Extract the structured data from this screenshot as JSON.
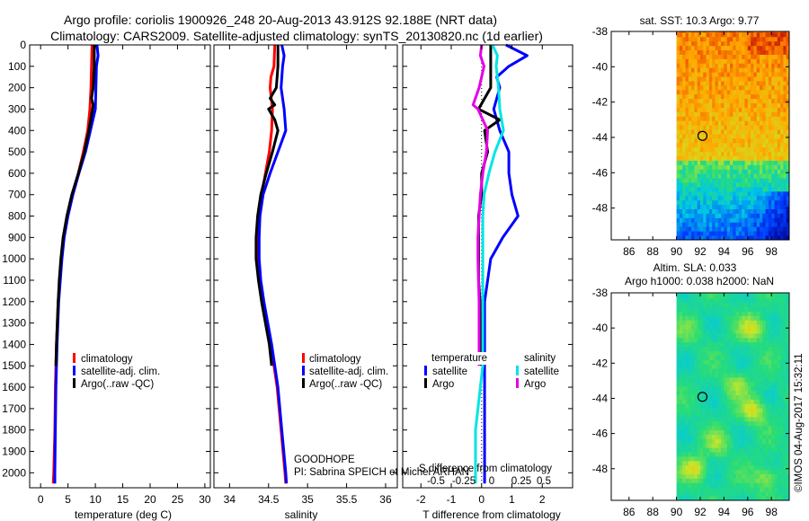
{
  "header": {
    "title_line1": "Argo profile: coriolis 1900926_248 20-Aug-2013 43.912S 92.188E (NRT data)",
    "title_line2": "Climatology: CARS2009. Satellite-adjusted climatology: synTS_20130820.nc (1d earlier)"
  },
  "colors": {
    "climatology": "#ff0000",
    "satellite": "#0000ff",
    "argo": "#000000",
    "sat_salinity": "#00e5e5",
    "argo_salinity": "#e600e6"
  },
  "chart_data": [
    {
      "type": "line",
      "id": "temperature",
      "xlabel": "temperature (deg C)",
      "ylabel": "",
      "xlim": [
        -2,
        31
      ],
      "ylim": [
        2070,
        0
      ],
      "xticks": [
        "0",
        "5",
        "10",
        "15",
        "20",
        "25",
        "30"
      ],
      "xtick_values": [
        0,
        5,
        10,
        15,
        20,
        25,
        30
      ],
      "yticks": [
        "0",
        "100",
        "200",
        "300",
        "400",
        "500",
        "600",
        "700",
        "800",
        "900",
        "1000",
        "1100",
        "1200",
        "1300",
        "1400",
        "1500",
        "1600",
        "1700",
        "1800",
        "1900",
        "2000"
      ],
      "ytick_values": [
        0,
        100,
        200,
        300,
        400,
        500,
        600,
        700,
        800,
        900,
        1000,
        1100,
        1200,
        1300,
        1400,
        1500,
        1600,
        1700,
        1800,
        1900,
        2000
      ],
      "legend": [
        "climatology",
        "satellite-adj. clim.",
        "Argo(..raw -QC)"
      ],
      "series": [
        {
          "name": "climatology",
          "depth": [
            0,
            100,
            200,
            300,
            400,
            500,
            600,
            700,
            800,
            900,
            1000,
            1100,
            1200,
            1400,
            1600,
            1800,
            2000,
            2050
          ],
          "values": [
            9.4,
            9.3,
            9.2,
            9.0,
            8.6,
            7.8,
            6.9,
            5.8,
            4.9,
            4.2,
            3.8,
            3.5,
            3.2,
            2.9,
            2.7,
            2.6,
            2.4,
            2.3
          ]
        },
        {
          "name": "satellite-adj. clim.",
          "depth": [
            0,
            50,
            100,
            200,
            300,
            400,
            500,
            600,
            700,
            800,
            900,
            1000,
            1100,
            1200,
            1400,
            1600,
            1800,
            2000,
            2050
          ],
          "values": [
            10.3,
            10.5,
            10.2,
            10.1,
            10.0,
            9.1,
            8.2,
            7.0,
            5.9,
            5.0,
            4.3,
            3.9,
            3.6,
            3.3,
            3.0,
            2.8,
            2.7,
            2.6,
            2.6
          ]
        },
        {
          "name": "Argo(..raw -QC)",
          "depth": [
            0,
            100,
            200,
            250,
            280,
            300,
            400,
            500,
            600,
            700,
            800,
            900,
            1000,
            1100,
            1200,
            1400,
            1500
          ],
          "values": [
            9.8,
            9.8,
            9.6,
            9.3,
            9.6,
            9.5,
            8.8,
            8.0,
            6.9,
            5.7,
            4.8,
            4.1,
            3.7,
            3.4,
            3.2,
            2.9,
            2.8
          ]
        }
      ]
    },
    {
      "type": "line",
      "id": "salinity",
      "xlabel": "salinity",
      "xlim": [
        33.8,
        36.15
      ],
      "ylim": [
        2070,
        0
      ],
      "xticks": [
        "34",
        "34.5",
        "35",
        "35.5",
        "36"
      ],
      "xtick_values": [
        34,
        34.5,
        35,
        35.5,
        36
      ],
      "legend": [
        "climatology",
        "satellite-adj. clim.",
        "Argo(..raw -QC)"
      ],
      "annotation_line1": "GOODHOPE",
      "annotation_line2": "PI: Sabrina SPEICH et Michel ARHAN",
      "series": [
        {
          "name": "climatology",
          "depth": [
            0,
            100,
            150,
            200,
            300,
            400,
            500,
            600,
            700,
            800,
            900,
            1000,
            1100,
            1200,
            1300,
            1400,
            1500,
            1600,
            1800,
            2000,
            2050
          ],
          "values": [
            34.58,
            34.57,
            34.53,
            34.52,
            34.55,
            34.54,
            34.51,
            34.46,
            34.41,
            34.38,
            34.37,
            34.37,
            34.39,
            34.43,
            34.48,
            34.53,
            34.57,
            34.61,
            34.66,
            34.71,
            34.72
          ]
        },
        {
          "name": "satellite-adj. clim.",
          "depth": [
            0,
            50,
            100,
            200,
            300,
            400,
            500,
            600,
            700,
            800,
            900,
            1000,
            1100,
            1200,
            1300,
            1400,
            1500,
            1600,
            1800,
            2000,
            2050
          ],
          "values": [
            34.67,
            34.7,
            34.68,
            34.66,
            34.7,
            34.72,
            34.62,
            34.52,
            34.43,
            34.39,
            34.38,
            34.38,
            34.4,
            34.44,
            34.49,
            34.54,
            34.58,
            34.62,
            34.67,
            34.72,
            34.73
          ]
        },
        {
          "name": "Argo(..raw -QC)",
          "depth": [
            0,
            100,
            200,
            250,
            280,
            300,
            350,
            400,
            500,
            600,
            700,
            800,
            900,
            1000,
            1100,
            1200,
            1300,
            1400,
            1500
          ],
          "values": [
            34.62,
            34.62,
            34.6,
            34.52,
            34.58,
            34.5,
            34.58,
            34.62,
            34.55,
            34.47,
            34.4,
            34.36,
            34.34,
            34.34,
            34.37,
            34.41,
            34.46,
            34.51,
            34.54
          ]
        }
      ]
    },
    {
      "type": "line",
      "id": "difference",
      "xlabel": "T difference from climatology",
      "xlabel_top": "S difference from climatology",
      "xlim": [
        -2.6,
        3.0
      ],
      "ylim": [
        2070,
        0
      ],
      "xticks": [
        "-2",
        "-1",
        "0",
        "1",
        "2"
      ],
      "xtick_values": [
        -2,
        -1,
        0,
        1,
        2
      ],
      "xticks_s": [
        "-0.5",
        "-0.25",
        "0",
        "0.25",
        "0.5"
      ],
      "legend_titles": [
        "temperature",
        "salinity"
      ],
      "legend": [
        "satellite",
        "Argo",
        "satellite",
        "Argo"
      ],
      "series": [
        {
          "name": "T satellite",
          "depth": [
            0,
            50,
            100,
            150,
            200,
            300,
            400,
            500,
            600,
            700,
            800,
            900,
            1000,
            1200,
            1500,
            1800,
            2050
          ],
          "values": [
            0.8,
            1.5,
            0.9,
            0.5,
            0.6,
            0.4,
            0.6,
            0.9,
            0.9,
            1.0,
            1.2,
            0.7,
            0.3,
            0.1,
            0.1,
            0.1,
            0.1
          ]
        },
        {
          "name": "T Argo",
          "depth": [
            0,
            100,
            200,
            300,
            350,
            400,
            500,
            600,
            700,
            800,
            900,
            1000,
            1100,
            1200,
            1500
          ],
          "values": [
            0.3,
            0.3,
            0.3,
            -0.1,
            0.6,
            0.1,
            0.2,
            0.0,
            0.0,
            -0.1,
            -0.1,
            -0.1,
            -0.1,
            -0.05,
            0.0
          ]
        },
        {
          "name": "S satellite",
          "depth": [
            0,
            50,
            100,
            200,
            300,
            400,
            500,
            600,
            700,
            800,
            900,
            1000,
            1200,
            1500,
            1800,
            2050
          ],
          "values": [
            0.09,
            0.13,
            0.12,
            0.14,
            0.15,
            0.18,
            0.11,
            0.06,
            0.02,
            0.01,
            0.01,
            0.01,
            0.01,
            0.01,
            -0.05,
            -0.05
          ]
        },
        {
          "name": "S Argo",
          "depth": [
            0,
            50,
            100,
            200,
            280,
            300,
            400,
            500,
            600,
            700,
            800,
            900,
            1000,
            1200,
            1500
          ],
          "values": [
            0.0,
            -0.01,
            0.02,
            -0.02,
            -0.07,
            -0.03,
            0.05,
            0.04,
            0.01,
            -0.01,
            -0.02,
            -0.03,
            -0.03,
            -0.02,
            -0.02
          ]
        }
      ]
    },
    {
      "type": "heatmap",
      "id": "sst_map",
      "title": "sat. SST: 10.3 Argo: 9.77",
      "xlim": [
        84.5,
        99.5
      ],
      "ylim": [
        -49.8,
        -38
      ],
      "xticks": [
        "86",
        "88",
        "90",
        "92",
        "94",
        "96",
        "98"
      ],
      "xtick_values": [
        86,
        88,
        90,
        92,
        94,
        96,
        98
      ],
      "yticks": [
        "-38",
        "-40",
        "-42",
        "-44",
        "-46",
        "-48"
      ],
      "ytick_values": [
        -38,
        -40,
        -42,
        -44,
        -46,
        -48
      ],
      "data_west_edge": 90,
      "float_lon": 92.188,
      "float_lat": -43.912
    },
    {
      "type": "heatmap",
      "id": "sla_map",
      "title_line1": "Altim. SLA: 0.033",
      "title_line2": "Argo h1000: 0.038 h2000: NaN",
      "xlim": [
        84.5,
        99.5
      ],
      "ylim": [
        -49.8,
        -38
      ],
      "xticks": [
        "86",
        "88",
        "90",
        "92",
        "94",
        "96",
        "98"
      ],
      "xtick_values": [
        86,
        88,
        90,
        92,
        94,
        96,
        98
      ],
      "yticks": [
        "-38",
        "-40",
        "-42",
        "-44",
        "-46",
        "-48"
      ],
      "ytick_values": [
        -38,
        -40,
        -42,
        -44,
        -46,
        -48
      ],
      "data_west_edge": 90,
      "float_lon": 92.188,
      "float_lat": -43.912
    }
  ],
  "footer": {
    "stamp": "©IMOS 04-Aug-2017 15:32:11"
  }
}
